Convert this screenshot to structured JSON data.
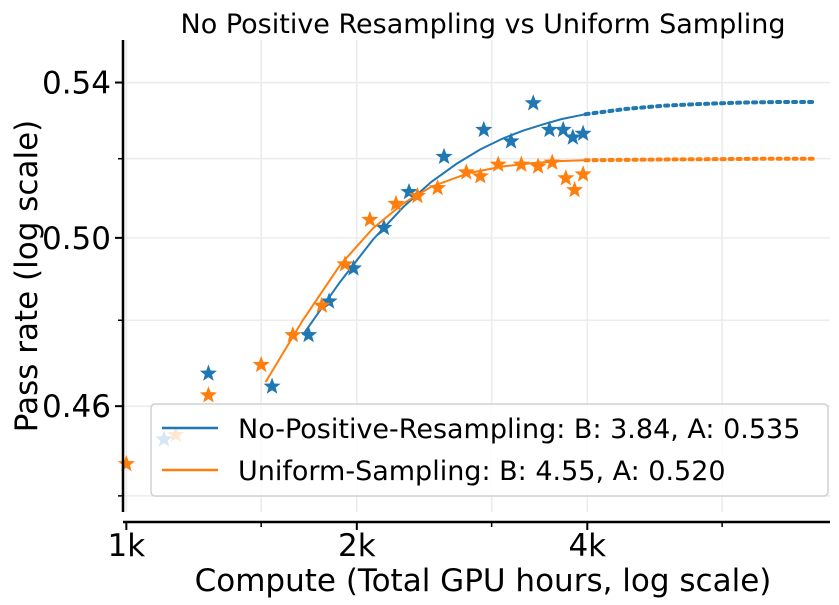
{
  "chart_data": {
    "type": "scatter",
    "title": "No Positive Resampling vs Uniform Sampling",
    "xlabel": "Compute (Total GPU hours, log scale)",
    "ylabel": "Pass rate (log scale)",
    "x_scale": "log",
    "y_scale": "log",
    "xlim": [
      990,
      8300
    ],
    "ylim": [
      0.4365,
      0.5515
    ],
    "x_ticks": [
      {
        "value": 1000,
        "label": "1k"
      },
      {
        "value": 2000,
        "label": "2k"
      },
      {
        "value": 4000,
        "label": "4k"
      }
    ],
    "x_grid": [
      1000,
      1500,
      2000,
      3000,
      4000,
      6000
    ],
    "y_ticks": [
      {
        "value": 0.46,
        "label": "0.46"
      },
      {
        "value": 0.5,
        "label": "0.50"
      },
      {
        "value": 0.54,
        "label": "0.54"
      }
    ],
    "y_grid": [
      0.44,
      0.46,
      0.48,
      0.5,
      0.52,
      0.54
    ],
    "grid": true,
    "legend_position": "lower-right",
    "series": [
      {
        "name": "No-Positive-Resampling: B: 3.84, A: 0.535",
        "color": "#1f77b4",
        "marker": "star",
        "points": [
          [
            1120,
            0.4525
          ],
          [
            1280,
            0.4675
          ],
          [
            1550,
            0.4645
          ],
          [
            1730,
            0.4765
          ],
          [
            1840,
            0.4845
          ],
          [
            1980,
            0.4925
          ],
          [
            2170,
            0.5025
          ],
          [
            2340,
            0.5115
          ],
          [
            2600,
            0.5205
          ],
          [
            2930,
            0.5275
          ],
          [
            3180,
            0.5245
          ],
          [
            3400,
            0.5345
          ],
          [
            3570,
            0.5275
          ],
          [
            3720,
            0.5275
          ],
          [
            3830,
            0.5255
          ],
          [
            3950,
            0.5265
          ]
        ],
        "fit": {
          "x": [
            1700,
            1900,
            2100,
            2300,
            2500,
            2700,
            2900,
            3100,
            3300,
            3500,
            3700,
            3980
          ],
          "y": [
            0.4765,
            0.4891,
            0.4996,
            0.5077,
            0.514,
            0.5187,
            0.5224,
            0.5252,
            0.5273,
            0.5289,
            0.5303,
            0.5316
          ]
        },
        "extrapolation": {
          "x": [
            3980,
            4500,
            5000,
            5500,
            6000,
            6500,
            7000,
            7500,
            7900
          ],
          "y": [
            0.5316,
            0.533,
            0.5338,
            0.5342,
            0.5345,
            0.5347,
            0.5348,
            0.5348,
            0.5348
          ]
        }
      },
      {
        "name": "Uniform-Sampling: B: 4.55, A: 0.520",
        "color": "#ff7f0e",
        "marker": "star",
        "points": [
          [
            1000,
            0.447
          ],
          [
            1160,
            0.4535
          ],
          [
            1280,
            0.4625
          ],
          [
            1500,
            0.4695
          ],
          [
            1650,
            0.4765
          ],
          [
            1800,
            0.4835
          ],
          [
            1930,
            0.4935
          ],
          [
            2080,
            0.5045
          ],
          [
            2250,
            0.5085
          ],
          [
            2400,
            0.5105
          ],
          [
            2550,
            0.5125
          ],
          [
            2780,
            0.5165
          ],
          [
            2900,
            0.5155
          ],
          [
            3060,
            0.5185
          ],
          [
            3280,
            0.5185
          ],
          [
            3450,
            0.518
          ],
          [
            3600,
            0.519
          ],
          [
            3750,
            0.515
          ],
          [
            3850,
            0.512
          ],
          [
            3950,
            0.516
          ]
        ],
        "fit": {
          "x": [
            1520,
            1700,
            1900,
            2100,
            2300,
            2500,
            2800,
            3100,
            3400,
            3700,
            3980
          ],
          "y": [
            0.4655,
            0.48,
            0.4932,
            0.5024,
            0.5086,
            0.5128,
            0.5163,
            0.518,
            0.5189,
            0.5194,
            0.5196
          ]
        },
        "extrapolation": {
          "x": [
            3980,
            5000,
            6000,
            7000,
            7900
          ],
          "y": [
            0.5196,
            0.5198,
            0.5199,
            0.52,
            0.52
          ]
        }
      }
    ]
  }
}
